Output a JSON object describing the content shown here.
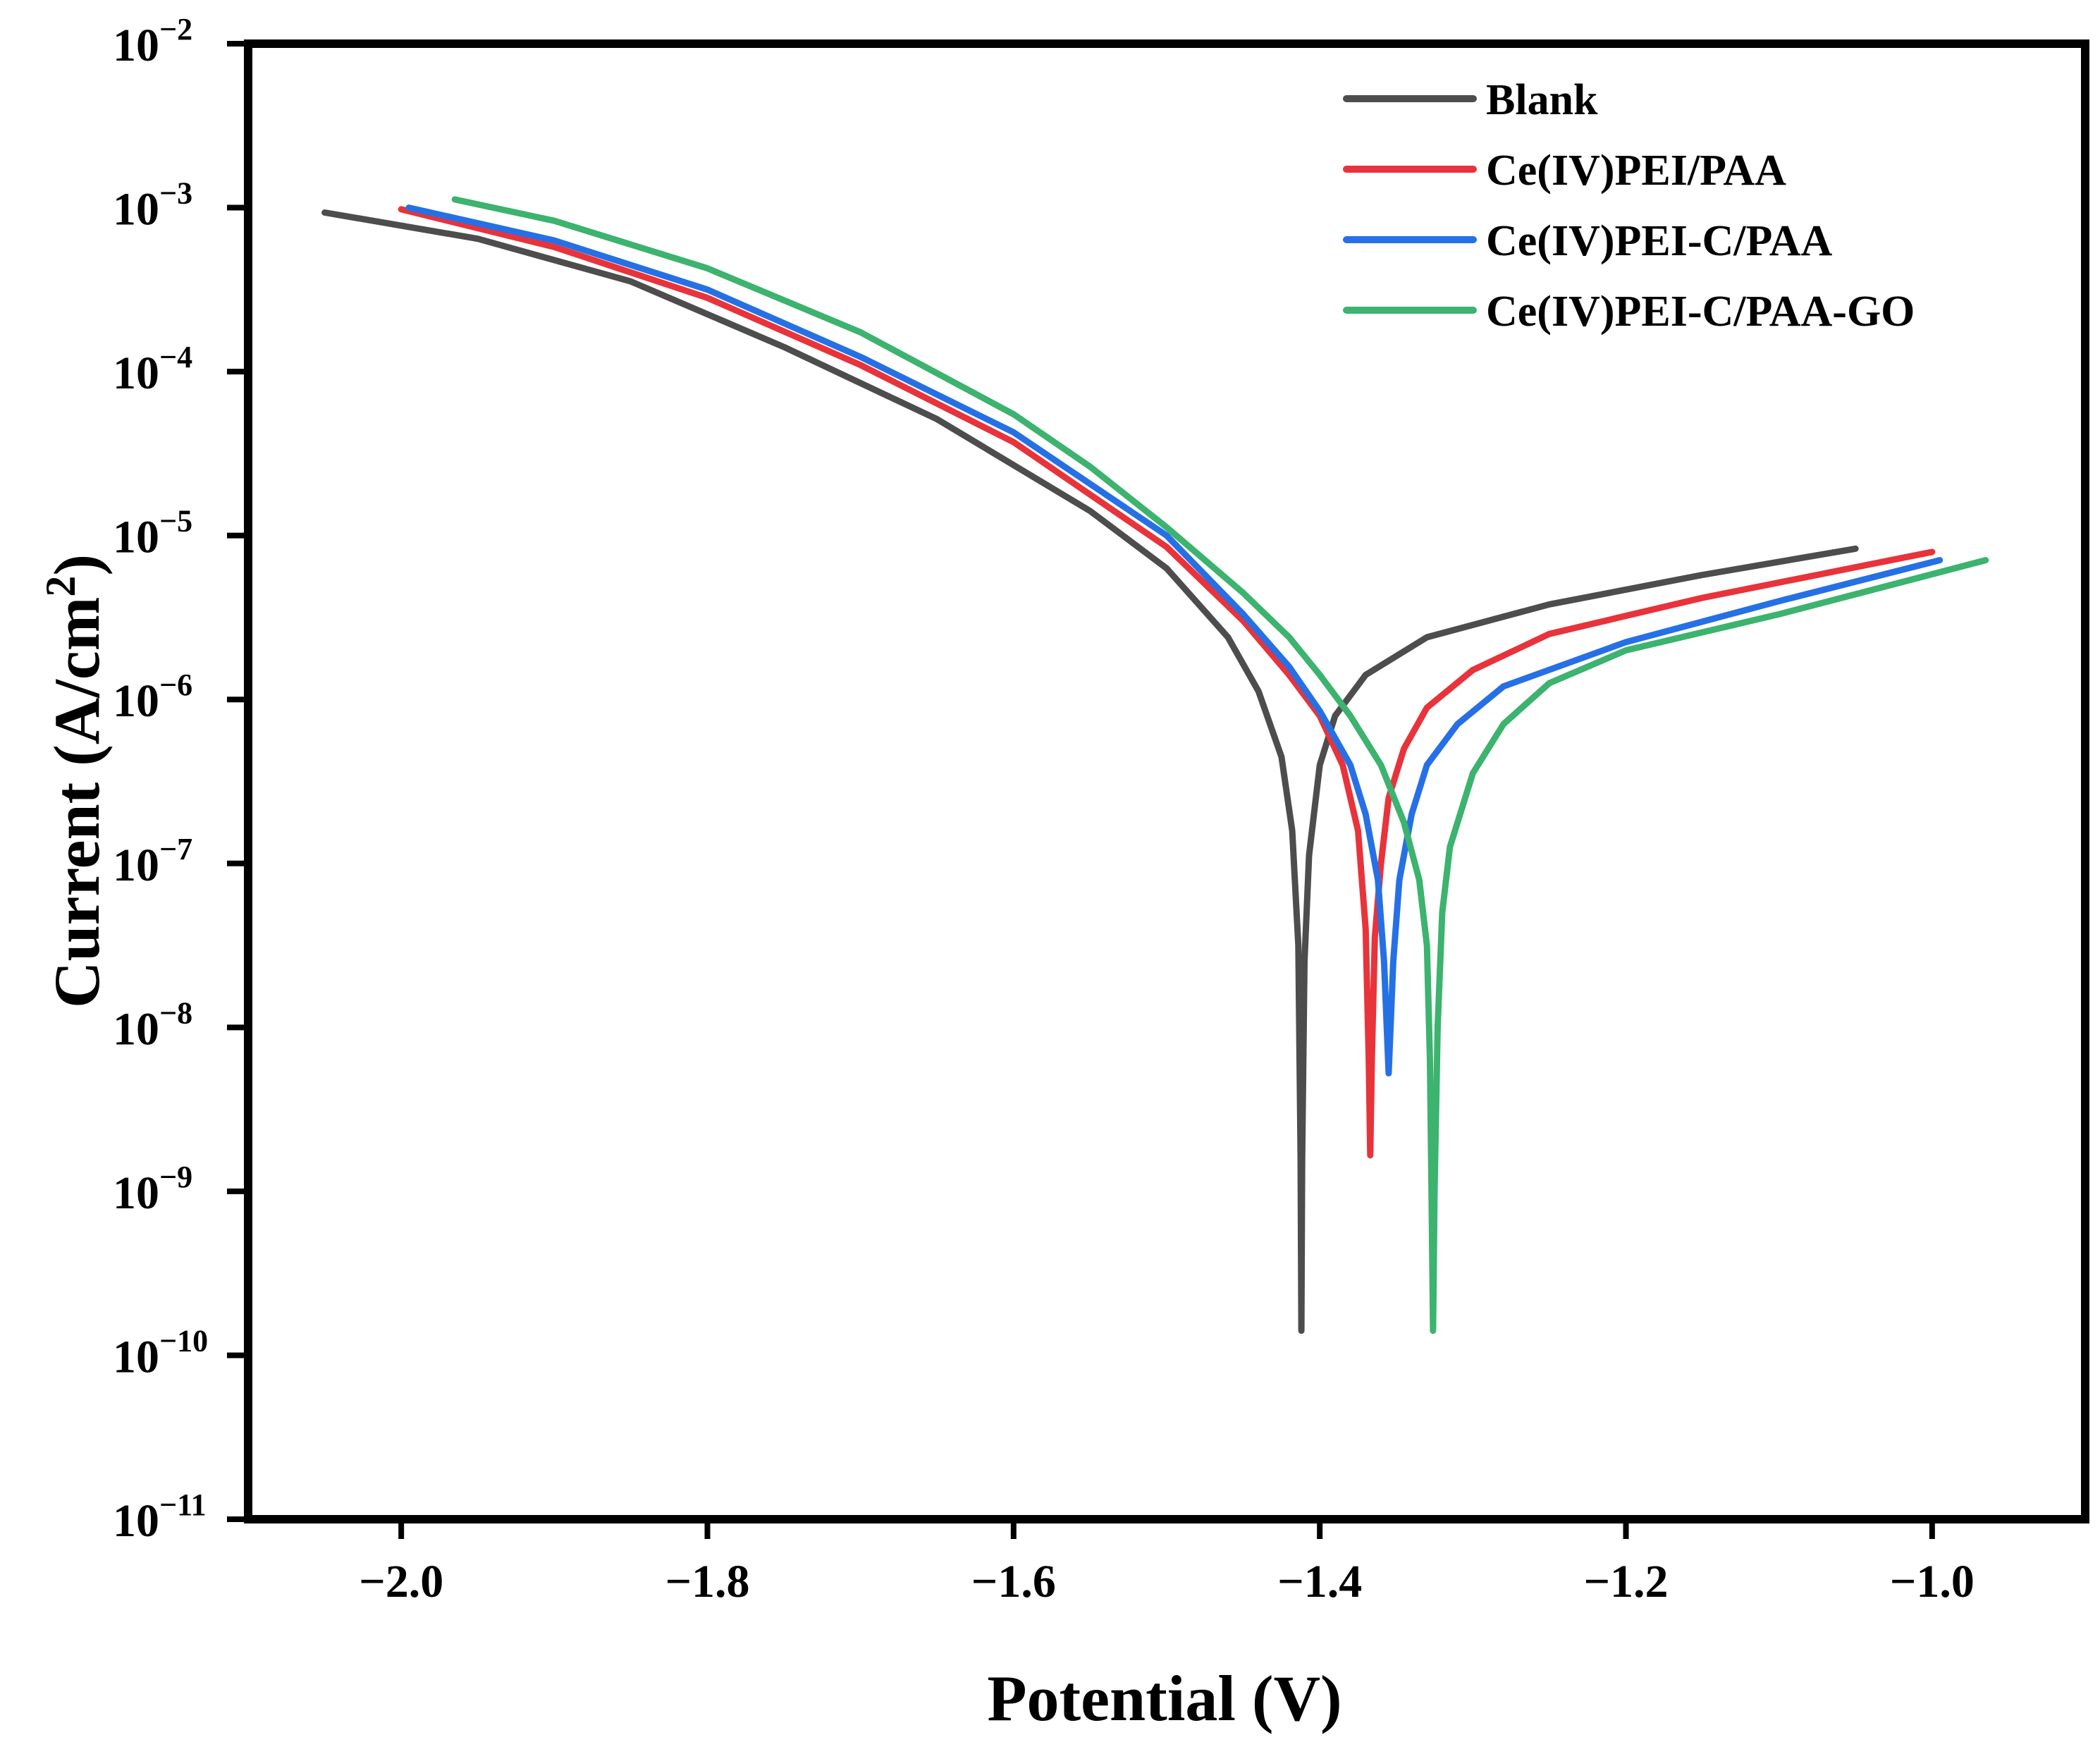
{
  "chart_data": {
    "type": "line",
    "xlabel": "Potential (V)",
    "ylabel_main": "Current (A/cm",
    "ylabel_sup": "2",
    "ylabel_end": ")",
    "xlim": [
      -2.1,
      -0.9
    ],
    "ylim_log10": [
      -11,
      -2
    ],
    "y_scale": "log",
    "x_ticks": [
      {
        "value": -2.0,
        "label": "−2.0"
      },
      {
        "value": -1.8,
        "label": "−1.8"
      },
      {
        "value": -1.6,
        "label": "−1.6"
      },
      {
        "value": -1.4,
        "label": "−1.4"
      },
      {
        "value": -1.2,
        "label": "−1.2"
      },
      {
        "value": -1.0,
        "label": "−1.0"
      }
    ],
    "y_ticks": [
      {
        "exp": -2,
        "base": "10",
        "sup": "−2"
      },
      {
        "exp": -3,
        "base": "10",
        "sup": "−3"
      },
      {
        "exp": -4,
        "base": "10",
        "sup": "−4"
      },
      {
        "exp": -5,
        "base": "10",
        "sup": "−5"
      },
      {
        "exp": -6,
        "base": "10",
        "sup": "−6"
      },
      {
        "exp": -7,
        "base": "10",
        "sup": "−7"
      },
      {
        "exp": -8,
        "base": "10",
        "sup": "−8"
      },
      {
        "exp": -9,
        "base": "10",
        "sup": "−9"
      },
      {
        "exp": -10,
        "base": "10",
        "sup": "−10"
      },
      {
        "exp": -11,
        "base": "10",
        "sup": "−11"
      }
    ],
    "legend_position": "top-right",
    "series": [
      {
        "name": "Blank",
        "color": "#4d4d4d",
        "points": [
          [
            -2.05,
            -3.03
          ],
          [
            -1.95,
            -3.19
          ],
          [
            -1.85,
            -3.45
          ],
          [
            -1.75,
            -3.85
          ],
          [
            -1.65,
            -4.29
          ],
          [
            -1.55,
            -4.85
          ],
          [
            -1.5,
            -5.2
          ],
          [
            -1.46,
            -5.62
          ],
          [
            -1.44,
            -5.95
          ],
          [
            -1.425,
            -6.35
          ],
          [
            -1.418,
            -6.8
          ],
          [
            -1.414,
            -7.5
          ],
          [
            -1.4125,
            -8.8
          ],
          [
            -1.412,
            -9.85
          ],
          [
            -1.4115,
            -8.8
          ],
          [
            -1.41,
            -7.6
          ],
          [
            -1.407,
            -6.95
          ],
          [
            -1.4,
            -6.4
          ],
          [
            -1.39,
            -6.1
          ],
          [
            -1.37,
            -5.85
          ],
          [
            -1.33,
            -5.62
          ],
          [
            -1.25,
            -5.42
          ],
          [
            -1.15,
            -5.24
          ],
          [
            -1.05,
            -5.08
          ]
        ]
      },
      {
        "name": "Ce(IV)PEI/PAA",
        "color": "#e8333b",
        "points": [
          [
            -2.0,
            -3.01
          ],
          [
            -1.9,
            -3.24
          ],
          [
            -1.8,
            -3.55
          ],
          [
            -1.7,
            -3.96
          ],
          [
            -1.6,
            -4.43
          ],
          [
            -1.5,
            -5.07
          ],
          [
            -1.45,
            -5.52
          ],
          [
            -1.42,
            -5.85
          ],
          [
            -1.4,
            -6.1
          ],
          [
            -1.385,
            -6.4
          ],
          [
            -1.375,
            -6.8
          ],
          [
            -1.37,
            -7.4
          ],
          [
            -1.368,
            -8.2
          ],
          [
            -1.367,
            -8.78
          ],
          [
            -1.366,
            -8.2
          ],
          [
            -1.364,
            -7.45
          ],
          [
            -1.36,
            -7.0
          ],
          [
            -1.355,
            -6.6
          ],
          [
            -1.345,
            -6.3
          ],
          [
            -1.33,
            -6.05
          ],
          [
            -1.3,
            -5.82
          ],
          [
            -1.25,
            -5.6
          ],
          [
            -1.15,
            -5.38
          ],
          [
            -1.0,
            -5.1
          ]
        ]
      },
      {
        "name": "Ce(IV)PEI-C/PAA",
        "color": "#2670e6",
        "points": [
          [
            -1.995,
            -3.0
          ],
          [
            -1.9,
            -3.2
          ],
          [
            -1.8,
            -3.5
          ],
          [
            -1.7,
            -3.91
          ],
          [
            -1.6,
            -4.37
          ],
          [
            -1.5,
            -5.0
          ],
          [
            -1.45,
            -5.48
          ],
          [
            -1.42,
            -5.8
          ],
          [
            -1.4,
            -6.07
          ],
          [
            -1.38,
            -6.4
          ],
          [
            -1.37,
            -6.7
          ],
          [
            -1.362,
            -7.1
          ],
          [
            -1.358,
            -7.6
          ],
          [
            -1.356,
            -8.05
          ],
          [
            -1.355,
            -8.28
          ],
          [
            -1.354,
            -8.05
          ],
          [
            -1.352,
            -7.6
          ],
          [
            -1.348,
            -7.1
          ],
          [
            -1.34,
            -6.7
          ],
          [
            -1.33,
            -6.4
          ],
          [
            -1.31,
            -6.15
          ],
          [
            -1.28,
            -5.92
          ],
          [
            -1.2,
            -5.65
          ],
          [
            -1.1,
            -5.4
          ],
          [
            -0.995,
            -5.15
          ]
        ]
      },
      {
        "name": "Ce(IV)PEI-C/PAA-GO",
        "color": "#3cb36e",
        "points": [
          [
            -1.965,
            -2.95
          ],
          [
            -1.9,
            -3.08
          ],
          [
            -1.8,
            -3.37
          ],
          [
            -1.7,
            -3.76
          ],
          [
            -1.6,
            -4.26
          ],
          [
            -1.55,
            -4.58
          ],
          [
            -1.5,
            -4.95
          ],
          [
            -1.45,
            -5.35
          ],
          [
            -1.42,
            -5.62
          ],
          [
            -1.4,
            -5.85
          ],
          [
            -1.38,
            -6.1
          ],
          [
            -1.36,
            -6.4
          ],
          [
            -1.345,
            -6.75
          ],
          [
            -1.335,
            -7.1
          ],
          [
            -1.33,
            -7.5
          ],
          [
            -1.328,
            -8.2
          ],
          [
            -1.327,
            -9.0
          ],
          [
            -1.326,
            -9.85
          ],
          [
            -1.325,
            -9.0
          ],
          [
            -1.323,
            -8.0
          ],
          [
            -1.32,
            -7.3
          ],
          [
            -1.315,
            -6.9
          ],
          [
            -1.3,
            -6.45
          ],
          [
            -1.28,
            -6.15
          ],
          [
            -1.25,
            -5.9
          ],
          [
            -1.2,
            -5.7
          ],
          [
            -1.1,
            -5.48
          ],
          [
            -0.965,
            -5.15
          ]
        ]
      }
    ]
  }
}
